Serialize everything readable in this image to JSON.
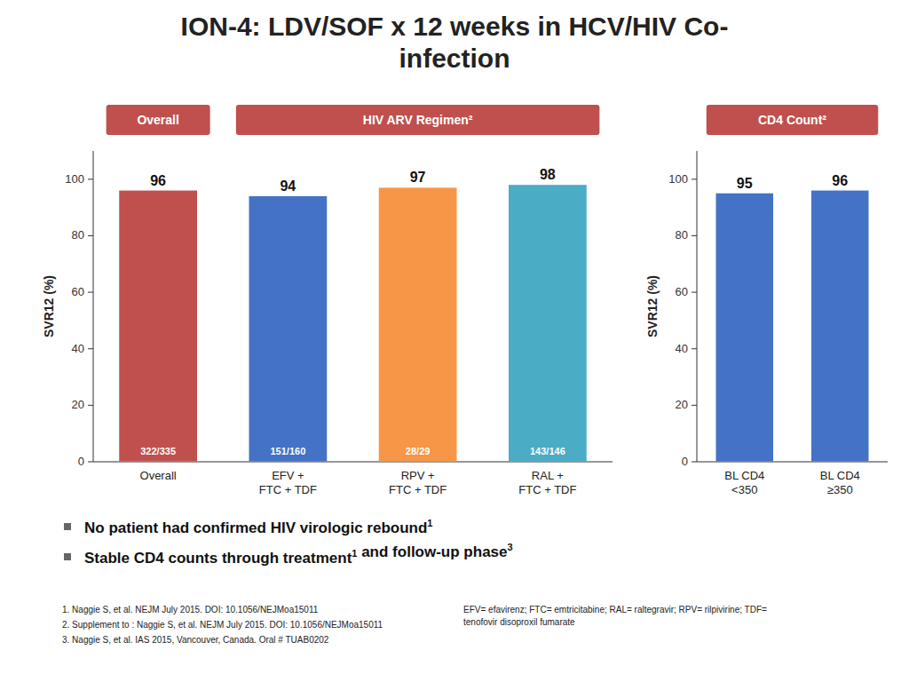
{
  "title": "ION-4: LDV/SOF x 12 weeks in HCV/HIV Co-\ninfection",
  "chart_data": [
    {
      "type": "bar",
      "categories": [
        "Overall",
        "EFV +\nFTC + TDF",
        "RPV +\nFTC + TDF",
        "RAL +\nFTC + TDF"
      ],
      "values": [
        96,
        94,
        97,
        98
      ],
      "colors": [
        "#C0504D",
        "#4472C4",
        "#F79646",
        "#4BACC6"
      ],
      "fractions": [
        "322/335",
        "151/160",
        "28/29",
        "143/146"
      ],
      "y_label": "SVR12 (%)",
      "ylim": [
        0,
        110
      ],
      "yticks": [
        0,
        20,
        40,
        60,
        80,
        100
      ],
      "data_labels": true,
      "grid": false,
      "groups": [
        {
          "label": "Overall",
          "categories": [
            "Overall"
          ],
          "color": "#C0504D"
        },
        {
          "label": "HIV ARV Regimen²",
          "categories": [
            "EFV +\nFTC + TDF",
            "RPV +\nFTC + TDF",
            "RAL +\nFTC + TDF"
          ],
          "color": "#C0504D"
        }
      ]
    },
    {
      "type": "bar",
      "categories": [
        "BL CD4\n<350",
        "BL CD4\n≥350"
      ],
      "values": [
        95,
        96
      ],
      "colors": [
        "#4472C4",
        "#4472C4"
      ],
      "y_label": "SVR12 (%)",
      "ylim": [
        0,
        110
      ],
      "yticks": [
        0,
        20,
        40,
        60,
        80,
        100
      ],
      "data_labels": true,
      "grid": false,
      "groups": [
        {
          "label": "CD4 Count²",
          "categories": [
            "BL CD4\n<350",
            "BL CD4\n≥350"
          ],
          "color": "#C0504D"
        }
      ]
    }
  ],
  "bullets": [
    [
      {
        "text": "No patient had confirmed HIV virologic rebound",
        "superscript": "1"
      }
    ],
    [
      {
        "text": "Stable CD4 counts through treatment",
        "superscript": "1"
      },
      {
        "text": " and follow-up phase",
        "superscript": "3"
      }
    ]
  ],
  "footnotes": [
    [
      "1. Naggie S, et al. NEJM July 2015. DOI: 10.1056/NEJMoa15011",
      "2. Supplement to : Naggie S, et al. NEJM July 2015. DOI: 10.1056/NEJMoa15011",
      "3. Naggie S, et al. IAS 2015, Vancouver, Canada. Oral # TUAB0202"
    ],
    [
      "EFV= efavirenz; FTC= emtricitabine; RAL= raltegravir; RPV= rilpivirine; TDF=\ntenofovir  disoproxil fumarate"
    ]
  ]
}
